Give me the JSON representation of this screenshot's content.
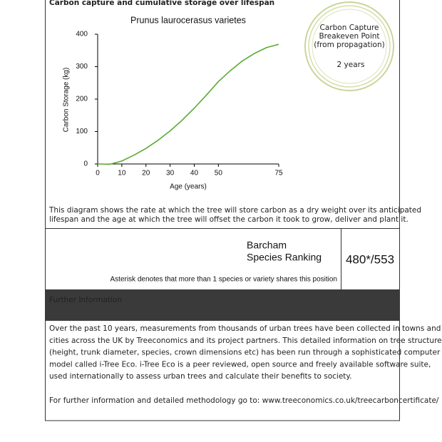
{
  "header": {
    "title": "Carbon capture and cumulative storage over lifespan"
  },
  "chart_data": {
    "type": "line",
    "title": "Prunus laurocerasus varietes",
    "x_label": "Age (years)",
    "y_label": "Carbon Storage (kg)",
    "x": [
      0,
      5,
      10,
      15,
      20,
      25,
      30,
      35,
      40,
      45,
      50,
      55,
      60,
      65,
      70,
      75
    ],
    "series": [
      {
        "color": "#5aaa34",
        "values": [
          0,
          -1,
          9,
          27,
          48,
          73,
          102,
          135,
          172,
          212,
          254,
          288,
          318,
          341,
          359,
          369
        ]
      }
    ],
    "xlim": [
      0,
      75
    ],
    "xticks": [
      0,
      10,
      20,
      30,
      40,
      50,
      75
    ],
    "ylim": [
      0,
      400
    ],
    "yticks": [
      0,
      100,
      200,
      300,
      400
    ],
    "grid": false
  },
  "badge": {
    "title_lines": [
      "Carbon Capture",
      "Breakeven Point",
      "(from propagation)"
    ],
    "value": "2 years"
  },
  "caption": [
    "This diagram shows the rate at which the tree will store carbon as a dry weight over its anticipated",
    "lifespan and the age at which the tree will offset the carbon it took to grow, deliver and plant it."
  ],
  "ranking": {
    "label_lines": [
      "Barcham",
      "Species Ranking"
    ],
    "value": "480*/553",
    "note": "Asterisk denotes that more than 1 species or variety shares this position"
  },
  "further_info": {
    "heading": "Further Information",
    "paragraph": [
      "Over the past 10 years, measurements from thousands of urban trees have been collected in towns and",
      "cities across the UK by Treeconomics and its project partners. This detailed information on tree structure",
      "(height, trunk diameter, species, crown dimensions etc) has been run through a sophisticated computer",
      "model called i-Tree Eco. i-Tree Eco is a peer reviewed, open source and freely available software suite,",
      "used internationally to assess urban trees and calculate their benefits to society."
    ],
    "link_line": "For further information and detailed methodology go to: www.treeconomics.co.uk/treecarboncertificate/"
  }
}
